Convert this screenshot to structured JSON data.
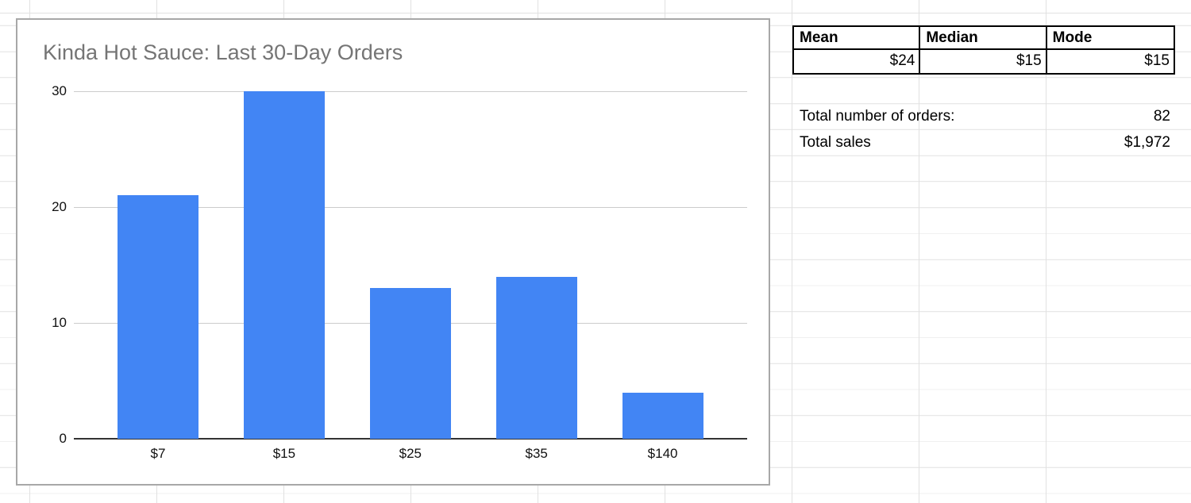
{
  "chart_data": {
    "type": "bar",
    "title": "Kinda Hot Sauce: Last 30-Day Orders",
    "categories": [
      "$7",
      "$15",
      "$25",
      "$35",
      "$140"
    ],
    "values": [
      21,
      30,
      13,
      14,
      4
    ],
    "xlabel": "",
    "ylabel": "",
    "ylim": [
      0,
      30
    ],
    "yticks": [
      0,
      10,
      20,
      30
    ],
    "grid": true,
    "legend": false,
    "bar_color": "#4285f4"
  },
  "stats_table": {
    "headers": [
      "Mean",
      "Median",
      "Mode"
    ],
    "values": [
      "$24",
      "$15",
      "$15"
    ]
  },
  "summary": {
    "orders_label": "Total number of orders:",
    "orders_value": "82",
    "sales_label": "Total sales",
    "sales_value": "$1,972"
  },
  "colors": {
    "bar": "#4285f4",
    "chart_title": "#757575",
    "plot_gridline": "#cccccc",
    "axis_line": "#333333",
    "sheet_gridline": "#e1e1e1",
    "chart_border": "#a8a8a8"
  }
}
